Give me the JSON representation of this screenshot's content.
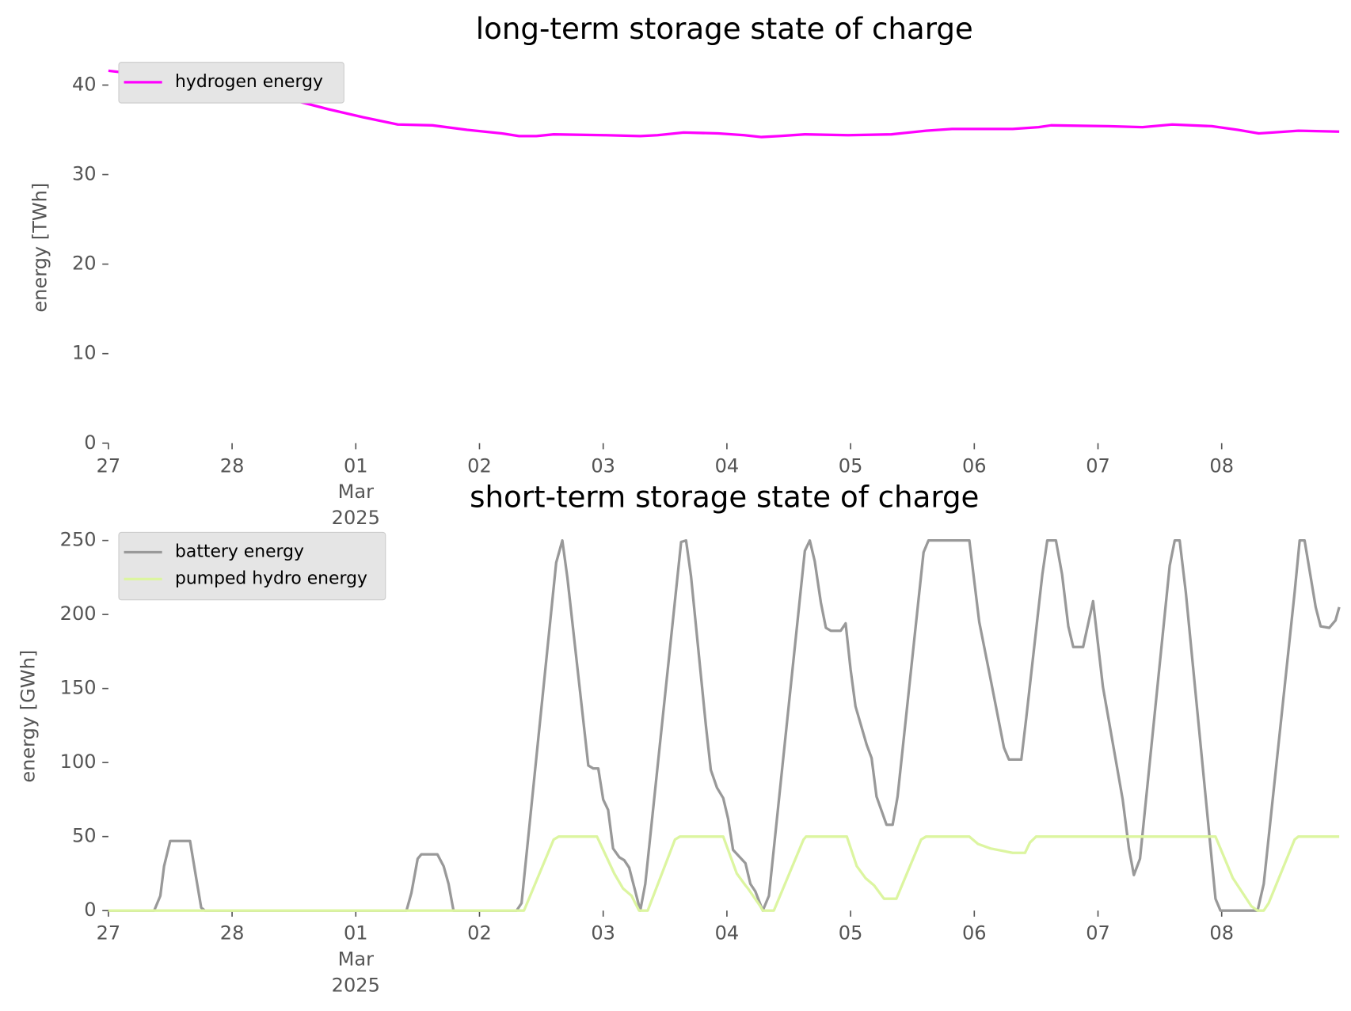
{
  "chart_data": [
    {
      "type": "line",
      "title": "long-term storage state of charge",
      "ylabel": "energy [TWh]",
      "xlim": [
        0,
        9.96
      ],
      "xticks": [
        {
          "value": 0,
          "label": "27"
        },
        {
          "value": 1,
          "label": "28"
        },
        {
          "value": 2,
          "label": "01\nMar\n2025"
        },
        {
          "value": 3,
          "label": "02"
        },
        {
          "value": 4,
          "label": "03"
        },
        {
          "value": 5,
          "label": "04"
        },
        {
          "value": 6,
          "label": "05"
        },
        {
          "value": 7,
          "label": "06"
        },
        {
          "value": 8,
          "label": "07"
        },
        {
          "value": 9,
          "label": "08"
        }
      ],
      "ylim": [
        0,
        43.7
      ],
      "yticks": [
        0,
        10,
        20,
        30,
        40
      ],
      "legend": "upper left",
      "series": [
        {
          "name": "hydrogen energy",
          "color": "#ff00ff",
          "x": [
            0,
            0.38,
            0.73,
            1.01,
            1.22,
            1.5,
            1.78,
            2.06,
            2.34,
            2.62,
            2.9,
            3.18,
            3.32,
            3.46,
            3.6,
            4.02,
            4.3,
            4.44,
            4.65,
            4.93,
            5.14,
            5.28,
            5.42,
            5.63,
            5.98,
            6.33,
            6.61,
            6.82,
            7.31,
            7.52,
            7.62,
            8.08,
            8.36,
            8.6,
            8.92,
            9.13,
            9.3,
            9.41,
            9.62,
            9.95
          ],
          "values": [
            41.6,
            41.0,
            40.7,
            40.3,
            39.6,
            38.3,
            37.3,
            36.4,
            35.6,
            35.5,
            35.0,
            34.6,
            34.3,
            34.3,
            34.5,
            34.4,
            34.3,
            34.4,
            34.7,
            34.6,
            34.4,
            34.2,
            34.3,
            34.5,
            34.4,
            34.5,
            34.9,
            35.1,
            35.1,
            35.3,
            35.5,
            35.4,
            35.3,
            35.6,
            35.4,
            35.0,
            34.6,
            34.7,
            34.9,
            34.8
          ]
        }
      ]
    },
    {
      "type": "line",
      "title": "short-term storage state of charge",
      "ylabel": "energy [GWh]",
      "xlim": [
        0,
        9.96
      ],
      "xticks": [
        {
          "value": 0,
          "label": "27"
        },
        {
          "value": 1,
          "label": "28"
        },
        {
          "value": 2,
          "label": "01\nMar\n2025"
        },
        {
          "value": 3,
          "label": "02"
        },
        {
          "value": 4,
          "label": "03"
        },
        {
          "value": 5,
          "label": "04"
        },
        {
          "value": 6,
          "label": "05"
        },
        {
          "value": 7,
          "label": "06"
        },
        {
          "value": 8,
          "label": "07"
        },
        {
          "value": 9,
          "label": "08"
        }
      ],
      "ylim": [
        0,
        262.5
      ],
      "yticks": [
        0,
        50,
        100,
        150,
        200,
        250
      ],
      "legend": "upper left",
      "series": [
        {
          "name": "battery energy",
          "color": "#999999",
          "x": [
            0,
            0.37,
            0.42,
            0.45,
            0.5,
            0.66,
            0.71,
            0.75,
            0.78,
            2.41,
            2.45,
            2.5,
            2.53,
            2.66,
            2.71,
            2.75,
            2.79,
            3.3,
            3.34,
            3.62,
            3.67,
            3.71,
            3.85,
            3.88,
            3.92,
            3.96,
            4.0,
            4.04,
            4.08,
            4.13,
            4.17,
            4.21,
            4.3,
            4.34,
            4.63,
            4.67,
            4.71,
            4.83,
            4.87,
            4.92,
            4.97,
            5.01,
            5.05,
            5.15,
            5.19,
            5.23,
            5.29,
            5.34,
            5.63,
            5.67,
            5.71,
            5.76,
            5.8,
            5.84,
            5.92,
            5.96,
            6.0,
            6.04,
            6.13,
            6.17,
            6.21,
            6.29,
            6.34,
            6.38,
            6.59,
            6.63,
            6.96,
            7.04,
            7.13,
            7.24,
            7.28,
            7.38,
            7.42,
            7.55,
            7.59,
            7.66,
            7.71,
            7.76,
            7.8,
            7.88,
            7.96,
            8.04,
            8.2,
            8.25,
            8.29,
            8.34,
            8.58,
            8.62,
            8.66,
            8.71,
            8.95,
            8.99,
            9.29,
            9.34,
            9.59,
            9.63,
            9.67,
            9.71,
            9.76,
            9.8,
            9.87,
            9.92,
            9.95
          ],
          "values": [
            0,
            0,
            10,
            30,
            47,
            47,
            22,
            2,
            0,
            0,
            12,
            35,
            38,
            38,
            30,
            18,
            0,
            0,
            5,
            235,
            250,
            225,
            120,
            98,
            96,
            96,
            75,
            68,
            42,
            36,
            34,
            29,
            0,
            18,
            249,
            250,
            226,
            125,
            95,
            83,
            76,
            62,
            41,
            32,
            18,
            13,
            0,
            10,
            243,
            250,
            236,
            208,
            191,
            189,
            189,
            194,
            163,
            138,
            112,
            103,
            77,
            58,
            58,
            77,
            242,
            250,
            250,
            195,
            157,
            110,
            102,
            102,
            130,
            227,
            250,
            250,
            227,
            192,
            178,
            178,
            209,
            151,
            75,
            42,
            24,
            35,
            233,
            250,
            250,
            215,
            8,
            0,
            0,
            18,
            215,
            250,
            250,
            230,
            205,
            192,
            191,
            196,
            205
          ]
        },
        {
          "name": "pumped hydro energy",
          "color": "#dcf5a0",
          "x": [
            0,
            3.36,
            3.6,
            3.64,
            3.95,
            4.09,
            4.16,
            4.23,
            4.29,
            4.36,
            4.58,
            4.62,
            4.97,
            5.08,
            5.15,
            5.17,
            5.27,
            5.29,
            5.38,
            5.62,
            5.64,
            5.97,
            6.05,
            6.12,
            6.19,
            6.27,
            6.37,
            6.57,
            6.61,
            6.96,
            7.03,
            7.13,
            7.31,
            7.41,
            7.45,
            7.5,
            8.95,
            9.09,
            9.24,
            9.29,
            9.34,
            9.38,
            9.59,
            9.62,
            9.95
          ],
          "values": [
            0,
            0,
            48,
            50,
            50,
            25,
            15,
            10,
            0,
            0,
            48,
            50,
            50,
            25,
            17,
            15,
            3,
            0,
            0,
            48,
            50,
            50,
            30,
            22,
            17,
            8,
            8,
            48,
            50,
            50,
            45,
            42,
            39,
            39,
            46,
            50,
            50,
            22,
            3,
            0,
            0,
            5,
            48,
            50,
            50
          ]
        }
      ]
    }
  ]
}
